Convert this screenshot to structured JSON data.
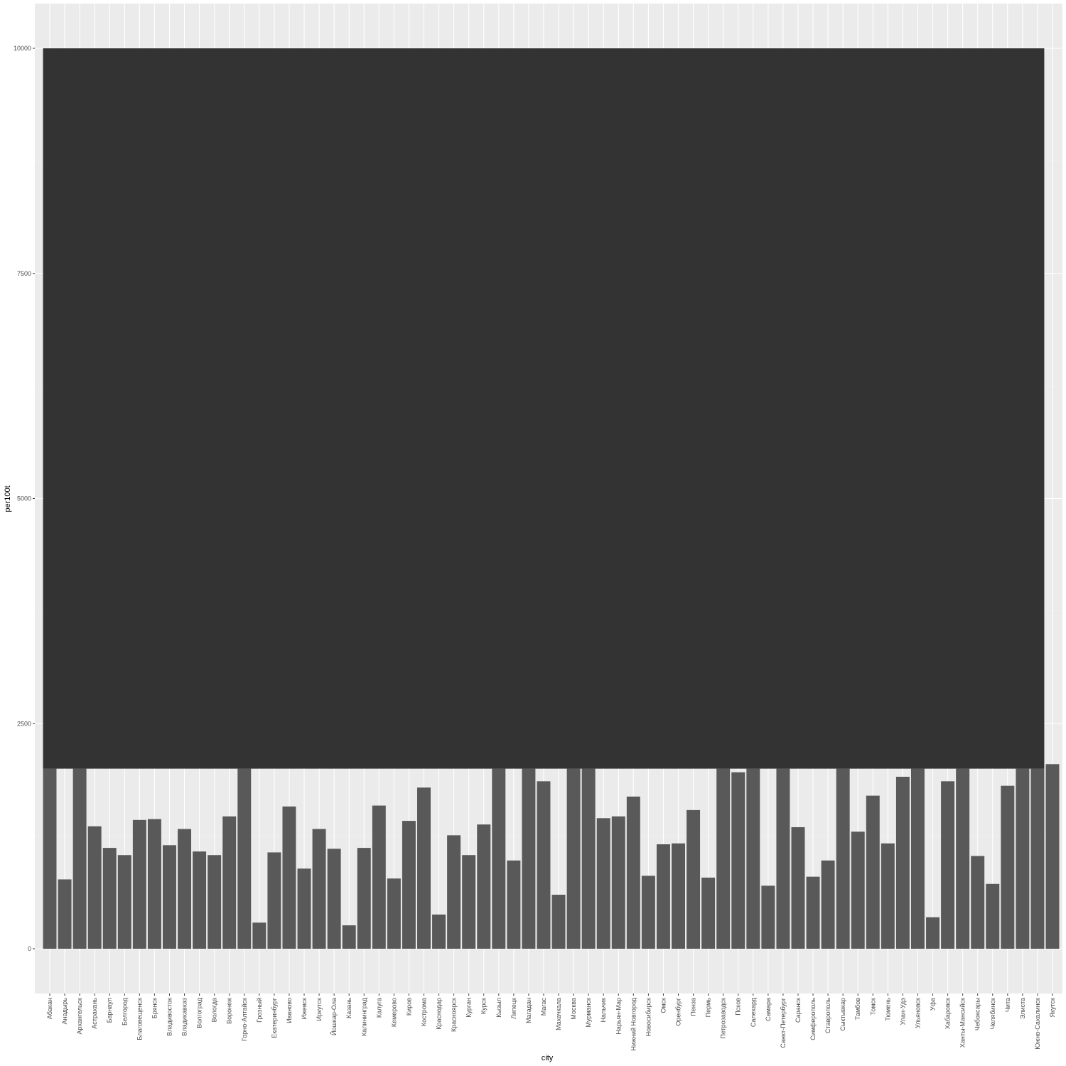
{
  "chart_data": {
    "type": "bar",
    "xlabel": "city",
    "ylabel": "per100t",
    "ylim": [
      -500,
      10500
    ],
    "yticks": [
      0,
      2500,
      5000,
      7500,
      10000
    ],
    "grid": true,
    "overlay_rect": {
      "x_from_category": "Абакан",
      "x_to_category": "Южно-Сахалинск",
      "y_bottom": 2000,
      "y_top": 10000,
      "color": "#333333"
    },
    "colors": {
      "bar": "#595959",
      "panel": "#EBEBEB",
      "overlay": "#333333"
    },
    "categories": [
      "Абакан",
      "Анадырь",
      "Архангельск",
      "Астрахань",
      "Барнаул",
      "Белгород",
      "Благовещенск",
      "Брянск",
      "Владивосток",
      "Владикавказ",
      "Волгоград",
      "Вологда",
      "Воронеж",
      "Горно-Алтайск",
      "Грозный",
      "Екатеринбург",
      "Иваново",
      "Ижевск",
      "Иркутск",
      "Йошкар-Ола",
      "Казань",
      "Калининград",
      "Калуга",
      "Кемерово",
      "Киров",
      "Кострома",
      "Краснодар",
      "Красноярск",
      "Курган",
      "Курск",
      "Кызыл",
      "Липецк",
      "Магадан",
      "Магас",
      "Махачкала",
      "Москва",
      "Мурманск",
      "Нальчик",
      "Нарьян-Мар",
      "Нижний Новгород",
      "Новосибирск",
      "Омск",
      "Оренбург",
      "Пенза",
      "Пермь",
      "Петрозаводск",
      "Псков",
      "Салехард",
      "Самара",
      "Санкт-Петербург",
      "Саранск",
      "Симферополь",
      "Ставрополь",
      "Сыктывкар",
      "Тамбов",
      "Томск",
      "Тюмень",
      "Улан-Удэ",
      "Ульяновск",
      "Уфа",
      "Хабаровск",
      "Ханты-Мансийск",
      "Чебоксары",
      "Челябинск",
      "Чита",
      "Элиста",
      "Южно-Сахалинск",
      "Якутск"
    ],
    "values": [
      2000,
      770,
      2000,
      1360,
      1120,
      1040,
      1430,
      1440,
      1150,
      1330,
      1080,
      1040,
      1470,
      2000,
      290,
      1070,
      1580,
      890,
      1330,
      1110,
      260,
      1120,
      1590,
      780,
      1420,
      1790,
      380,
      1260,
      1040,
      1380,
      2000,
      980,
      2000,
      1860,
      600,
      2000,
      2000,
      1450,
      1470,
      1690,
      810,
      1160,
      1170,
      1540,
      790,
      2000,
      1960,
      2000,
      700,
      2000,
      1350,
      800,
      980,
      2000,
      1300,
      1700,
      1170,
      1910,
      2000,
      350,
      1860,
      2000,
      1030,
      720,
      1810,
      2000,
      2000,
      2050
    ]
  }
}
